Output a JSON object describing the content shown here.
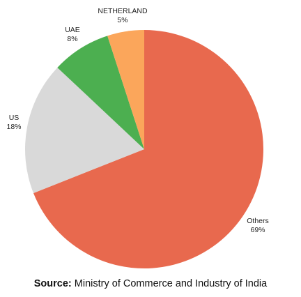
{
  "chart_data": {
    "type": "pie",
    "start_angle_deg": 0,
    "direction": "clockwise",
    "slices": [
      {
        "label": "Others",
        "value": 69,
        "value_label": "69%",
        "color": "#e8694e"
      },
      {
        "label": "US",
        "value": 18,
        "value_label": "18%",
        "color": "#d9d9d9"
      },
      {
        "label": "UAE",
        "value": 8,
        "value_label": "8%",
        "color": "#4caf50"
      },
      {
        "label": "NETHERLAND",
        "value": 5,
        "value_label": "5%",
        "color": "#fba65b"
      }
    ]
  },
  "source": {
    "label": "Source:",
    "text": "Ministry of Commerce and Industry of India"
  }
}
